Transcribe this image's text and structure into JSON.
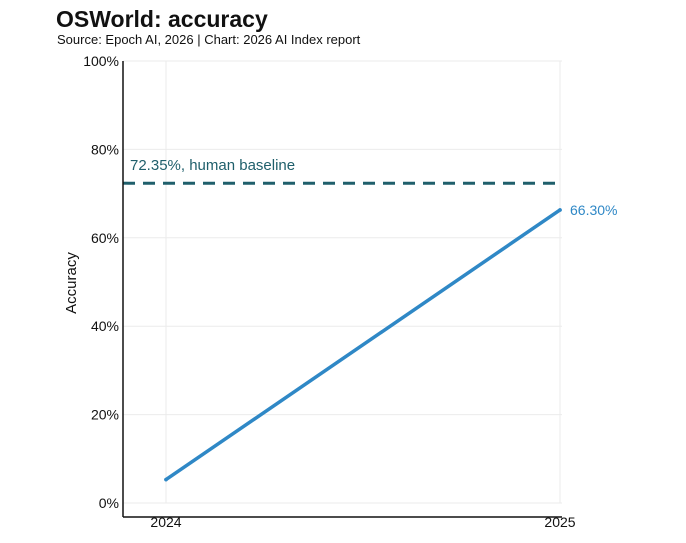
{
  "title": "OSWorld: accuracy",
  "subtitle": "Source: Epoch AI, 2026 | Chart: 2026 AI Index report",
  "colors": {
    "series": "#2f88c6",
    "baseline": "#1f5f6b",
    "axis": "#111111",
    "grid": "#ebebeb",
    "text": "#111111"
  },
  "chart_data": {
    "type": "line",
    "title": "OSWorld: accuracy",
    "subtitle": "Source: Epoch AI, 2026 | Chart: 2026 AI Index report",
    "xlabel": "",
    "ylabel": "Accuracy",
    "x": [
      "2024",
      "2025"
    ],
    "ylim": [
      0,
      100
    ],
    "yticks": [
      0,
      20,
      40,
      60,
      80,
      100
    ],
    "ytick_labels": [
      "0%",
      "20%",
      "40%",
      "60%",
      "80%",
      "100%"
    ],
    "grid": true,
    "series": [
      {
        "values": [
          5.3,
          66.3
        ],
        "end_label": "66.30%"
      }
    ],
    "reference_lines": [
      {
        "value": 72.35,
        "label": "72.35%, human baseline",
        "style": "dashed"
      }
    ]
  }
}
